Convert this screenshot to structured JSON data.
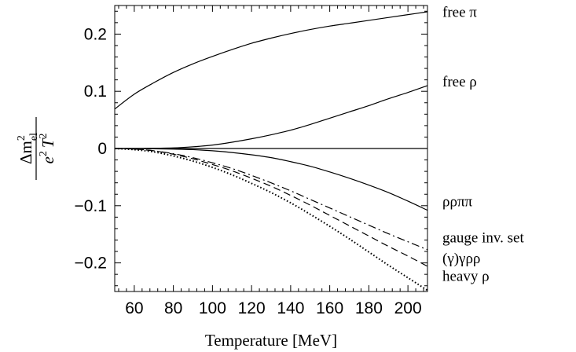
{
  "chart_data": {
    "type": "line",
    "title": "",
    "xlabel": "Temperature [MeV]",
    "ylabel": {
      "numerator_base": "Δm",
      "numerator_sup": "2",
      "numerator_sub": "el",
      "denominator_a": "e",
      "denominator_a_sup": "2",
      "denominator_b": "T",
      "denominator_b_sup": "2"
    },
    "xlim": [
      50,
      210
    ],
    "ylim": [
      -0.25,
      0.25
    ],
    "xticks": [
      60,
      80,
      100,
      120,
      140,
      160,
      180,
      200
    ],
    "xtick_labels": [
      "60",
      "80",
      "100",
      "120",
      "140",
      "160",
      "180",
      "200"
    ],
    "yticks": [
      -0.2,
      -0.1,
      0,
      0.1,
      0.2
    ],
    "ytick_labels": [
      "−0.2",
      "−0.1",
      "0",
      "0.1",
      "0.2"
    ],
    "grid": false,
    "legend": "right-margin labels",
    "series": [
      {
        "name": "free π",
        "style": "solid",
        "x": [
          50,
          60,
          70,
          80,
          90,
          100,
          110,
          120,
          130,
          140,
          150,
          160,
          170,
          180,
          190,
          200,
          210
        ],
        "y": [
          0.069,
          0.095,
          0.115,
          0.133,
          0.148,
          0.161,
          0.173,
          0.184,
          0.193,
          0.201,
          0.208,
          0.214,
          0.219,
          0.224,
          0.229,
          0.234,
          0.239
        ]
      },
      {
        "name": "free ρ",
        "style": "solid",
        "x": [
          50,
          60,
          70,
          80,
          90,
          100,
          110,
          120,
          130,
          140,
          150,
          160,
          170,
          180,
          190,
          200,
          210
        ],
        "y": [
          0.0,
          0.0,
          0.0005,
          0.001,
          0.003,
          0.006,
          0.011,
          0.017,
          0.024,
          0.032,
          0.042,
          0.053,
          0.064,
          0.075,
          0.087,
          0.098,
          0.11
        ]
      },
      {
        "name": "zero",
        "style": "solid",
        "x": [
          50,
          210
        ],
        "y": [
          0,
          0
        ]
      },
      {
        "name": "ρρππ",
        "style": "solid",
        "x": [
          50,
          60,
          70,
          80,
          90,
          100,
          110,
          120,
          130,
          140,
          150,
          160,
          170,
          180,
          190,
          200,
          210
        ],
        "y": [
          0.0,
          0.0,
          -0.0005,
          -0.001,
          -0.002,
          -0.004,
          -0.007,
          -0.011,
          -0.016,
          -0.023,
          -0.031,
          -0.041,
          -0.052,
          -0.064,
          -0.077,
          -0.092,
          -0.108
        ]
      },
      {
        "name": "gauge inv. set",
        "style": "dashdot",
        "x": [
          50,
          60,
          70,
          80,
          90,
          100,
          110,
          120,
          130,
          140,
          150,
          160,
          170,
          180,
          190,
          200,
          210
        ],
        "y": [
          0.0,
          -0.001,
          -0.004,
          -0.009,
          -0.016,
          -0.025,
          -0.035,
          -0.047,
          -0.06,
          -0.074,
          -0.089,
          -0.104,
          -0.119,
          -0.134,
          -0.149,
          -0.163,
          -0.177
        ]
      },
      {
        "name": "(γ)γρρ",
        "style": "dashed",
        "x": [
          50,
          60,
          70,
          80,
          90,
          100,
          110,
          120,
          130,
          140,
          150,
          160,
          170,
          180,
          190,
          200,
          210
        ],
        "y": [
          0.0,
          -0.001,
          -0.004,
          -0.01,
          -0.018,
          -0.028,
          -0.039,
          -0.052,
          -0.066,
          -0.082,
          -0.099,
          -0.117,
          -0.135,
          -0.153,
          -0.171,
          -0.188,
          -0.206
        ]
      },
      {
        "name": "heavy ρ",
        "style": "dotted",
        "x": [
          50,
          60,
          70,
          80,
          90,
          100,
          110,
          120,
          130,
          140,
          150,
          160,
          170,
          180,
          190,
          200,
          210
        ],
        "y": [
          0.0,
          -0.002,
          -0.006,
          -0.013,
          -0.022,
          -0.033,
          -0.046,
          -0.061,
          -0.077,
          -0.095,
          -0.115,
          -0.136,
          -0.158,
          -0.181,
          -0.204,
          -0.226,
          -0.248
        ]
      }
    ],
    "series_labels": [
      {
        "text": "free π",
        "y": 0.238
      },
      {
        "text": "free ρ",
        "y": 0.117
      },
      {
        "text": "ρρππ",
        "y": -0.093
      },
      {
        "text": "gauge inv. set",
        "y": -0.156
      },
      {
        "text": "(γ)γρρ",
        "y": -0.192
      },
      {
        "text": "heavy ρ",
        "y": -0.223
      }
    ]
  }
}
